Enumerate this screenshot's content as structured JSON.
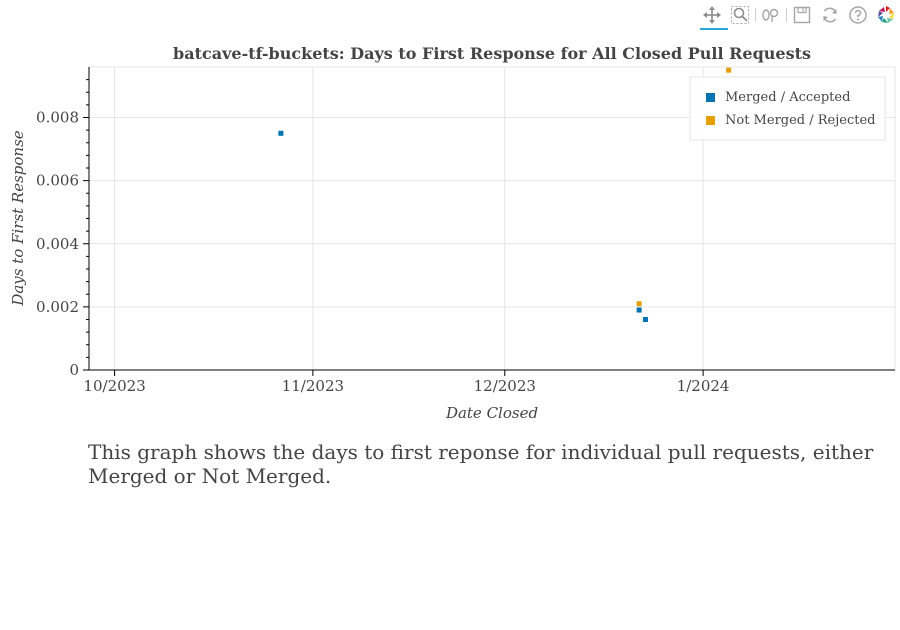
{
  "toolbar": {
    "tools": [
      {
        "name": "pan-tool",
        "icon": "pan-icon"
      },
      {
        "name": "box-zoom-tool",
        "icon": "box-zoom-icon"
      },
      {
        "name": "wheel-zoom-tool",
        "icon": "wheel-zoom-icon"
      },
      {
        "name": "save-tool",
        "icon": "save-icon"
      },
      {
        "name": "reset-tool",
        "icon": "reset-icon"
      },
      {
        "name": "help-tool",
        "icon": "help-icon"
      },
      {
        "name": "bokeh-logo",
        "icon": "bokeh-logo-icon"
      }
    ]
  },
  "chart_data": {
    "type": "scatter",
    "title": "batcave-tf-buckets: Days to First Response for All Closed Pull Requests",
    "xlabel": "Date Closed",
    "ylabel": "Days to First Response",
    "x_axis_type": "datetime",
    "xlim": [
      "2023-09-27",
      "2024-01-31"
    ],
    "ylim": [
      0,
      0.0096
    ],
    "x_ticks": [
      {
        "value": "2023-10-01",
        "label": "10/2023"
      },
      {
        "value": "2023-11-01",
        "label": "11/2023"
      },
      {
        "value": "2023-12-01",
        "label": "12/2023"
      },
      {
        "value": "2024-01-01",
        "label": "1/2024"
      }
    ],
    "y_ticks": [
      {
        "value": 0,
        "label": "0"
      },
      {
        "value": 0.002,
        "label": "0.002"
      },
      {
        "value": 0.004,
        "label": "0.004"
      },
      {
        "value": 0.006,
        "label": "0.006"
      },
      {
        "value": 0.008,
        "label": "0.008"
      }
    ],
    "grid": true,
    "legend_position": "top-right",
    "series": [
      {
        "name": "Merged / Accepted",
        "color": "#0072b2",
        "points": [
          {
            "x": "2023-10-27",
            "y": 0.0075
          },
          {
            "x": "2023-12-22",
            "y": 0.0019
          },
          {
            "x": "2023-12-23",
            "y": 0.0016
          }
        ]
      },
      {
        "name": "Not Merged / Rejected",
        "color": "#e69f00",
        "points": [
          {
            "x": "2023-12-22",
            "y": 0.0021
          },
          {
            "x": "2024-01-05",
            "y": 0.0095
          }
        ]
      }
    ]
  },
  "caption": "This graph shows the days to first reponse for individual pull requests, either Merged or Not Merged."
}
